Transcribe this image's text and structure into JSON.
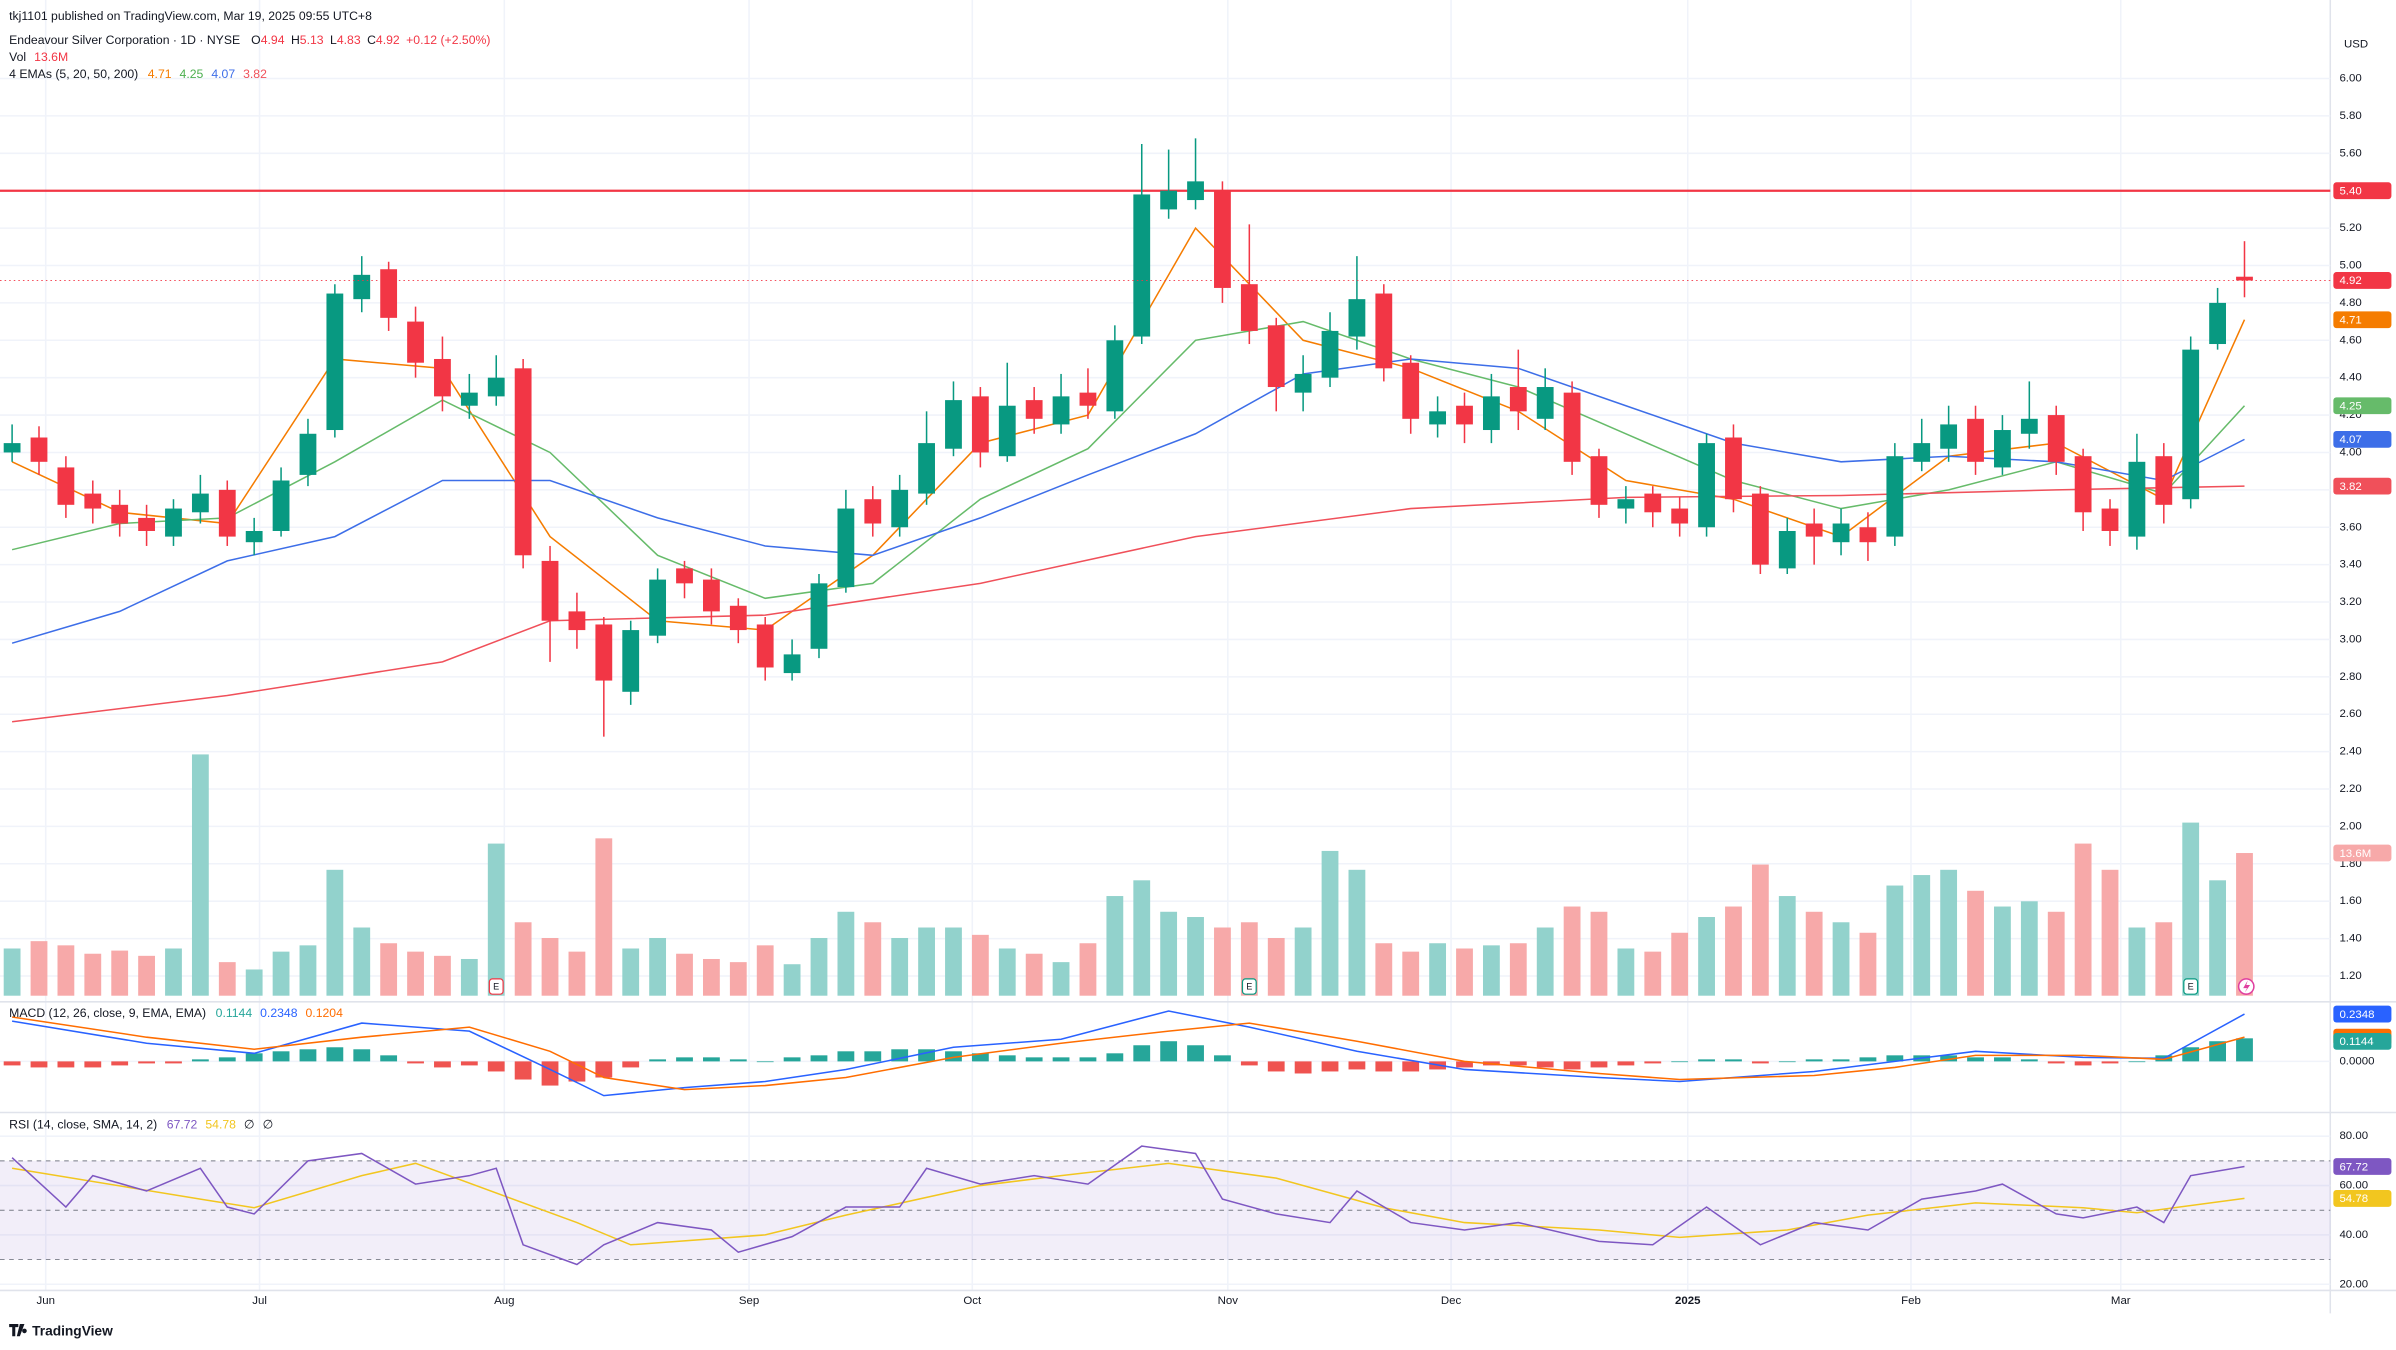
{
  "header": {
    "published": "tkj1101 published on TradingView.com, Mar 19, 2025 09:55 UTC+8"
  },
  "footer": {
    "brand": "TradingView"
  },
  "chart_data": [
    {
      "type": "candlestick",
      "title": "Endeavour Silver Corporation · 1D · NYSE",
      "legend_keys": [
        "O",
        "H",
        "L",
        "C"
      ],
      "change": "+0.12 (+2.50%)",
      "currency": "USD",
      "up_color": "#089981",
      "down_color": "#f23645",
      "grid": true,
      "xlim": [
        -0.45,
        86.19
      ],
      "ylim": [
        1.07,
        6.42
      ],
      "xticks": [
        {
          "value": 1.25,
          "label": "Jun"
        },
        {
          "value": 9.2,
          "label": "Jul"
        },
        {
          "value": 18.3,
          "label": "Aug"
        },
        {
          "value": 27.4,
          "label": "Sep"
        },
        {
          "value": 35.7,
          "label": "Oct"
        },
        {
          "value": 45.2,
          "label": "Nov"
        },
        {
          "value": 53.5,
          "label": "Dec"
        },
        {
          "value": 62.3,
          "label": "2025"
        },
        {
          "value": 70.6,
          "label": "Feb"
        },
        {
          "value": 78.4,
          "label": "Mar"
        }
      ],
      "yticks": [
        {
          "value": 1.2,
          "label": "1.20"
        },
        {
          "value": 1.4,
          "label": "1.40"
        },
        {
          "value": 1.6,
          "label": "1.60"
        },
        {
          "value": 1.8,
          "label": "1.80"
        },
        {
          "value": 2,
          "label": "2.00"
        },
        {
          "value": 2.2,
          "label": "2.20"
        },
        {
          "value": 2.4,
          "label": "2.40"
        },
        {
          "value": 2.6,
          "label": "2.60"
        },
        {
          "value": 2.8,
          "label": "2.80"
        },
        {
          "value": 3,
          "label": "3.00"
        },
        {
          "value": 3.2,
          "label": "3.20"
        },
        {
          "value": 3.4,
          "label": "3.40"
        },
        {
          "value": 3.6,
          "label": "3.60"
        },
        {
          "value": 3.8,
          "label": "3.80"
        },
        {
          "value": 4,
          "label": "4.00"
        },
        {
          "value": 4.2,
          "label": "4.20"
        },
        {
          "value": 4.4,
          "label": "4.40"
        },
        {
          "value": 4.6,
          "label": "4.60"
        },
        {
          "value": 4.8,
          "label": "4.80"
        },
        {
          "value": 5,
          "label": "5.00"
        },
        {
          "value": 5.2,
          "label": "5.20"
        },
        {
          "value": 5.4,
          "label": "5.40"
        },
        {
          "value": 5.6,
          "label": "5.60"
        },
        {
          "value": 5.8,
          "label": "5.80"
        },
        {
          "value": 6,
          "label": "6.00"
        }
      ],
      "open": [
        4.0,
        4.08,
        3.92,
        3.78,
        3.72,
        3.65,
        3.55,
        3.68,
        3.8,
        3.52,
        3.58,
        3.88,
        4.12,
        4.82,
        4.98,
        4.7,
        4.5,
        4.25,
        4.3,
        4.45,
        3.42,
        3.15,
        3.08,
        2.72,
        3.02,
        3.38,
        3.32,
        3.18,
        3.08,
        2.82,
        2.95,
        3.28,
        3.75,
        3.6,
        3.78,
        4.02,
        4.3,
        3.98,
        4.28,
        4.15,
        4.32,
        4.22,
        4.62,
        5.3,
        5.35,
        5.4,
        4.9,
        4.68,
        4.32,
        4.4,
        4.62,
        4.85,
        4.48,
        4.15,
        4.25,
        4.12,
        4.35,
        4.18,
        4.32,
        3.98,
        3.7,
        3.78,
        3.7,
        3.6,
        4.08,
        3.78,
        3.38,
        3.62,
        3.52,
        3.6,
        3.55,
        3.95,
        4.02,
        4.18,
        3.92,
        4.1,
        4.2,
        3.98,
        3.7,
        3.55,
        3.98,
        3.75,
        4.58,
        4.94
      ],
      "high": [
        4.15,
        4.14,
        3.98,
        3.85,
        3.8,
        3.72,
        3.75,
        3.88,
        3.85,
        3.65,
        3.92,
        4.18,
        4.9,
        5.05,
        5.02,
        4.78,
        4.62,
        4.42,
        4.52,
        4.5,
        3.5,
        3.25,
        3.12,
        3.1,
        3.38,
        3.42,
        3.38,
        3.22,
        3.12,
        3.0,
        3.35,
        3.8,
        3.82,
        3.88,
        4.22,
        4.38,
        4.35,
        4.48,
        4.35,
        4.42,
        4.45,
        4.68,
        5.65,
        5.62,
        5.68,
        5.45,
        5.22,
        4.72,
        4.52,
        4.75,
        5.05,
        4.9,
        4.52,
        4.3,
        4.32,
        4.42,
        4.55,
        4.45,
        4.38,
        4.02,
        3.82,
        3.82,
        3.76,
        4.1,
        4.15,
        3.82,
        3.65,
        3.7,
        3.7,
        3.68,
        4.05,
        4.18,
        4.25,
        4.25,
        4.2,
        4.38,
        4.25,
        4.02,
        3.75,
        4.1,
        4.05,
        4.62,
        4.88,
        5.13
      ],
      "low": [
        3.95,
        3.88,
        3.65,
        3.62,
        3.55,
        3.5,
        3.5,
        3.62,
        3.5,
        3.45,
        3.55,
        3.82,
        4.08,
        4.75,
        4.65,
        4.4,
        4.22,
        4.18,
        4.25,
        3.38,
        2.88,
        2.95,
        2.48,
        2.65,
        2.98,
        3.22,
        3.08,
        2.98,
        2.78,
        2.78,
        2.9,
        3.25,
        3.55,
        3.55,
        3.72,
        3.98,
        3.92,
        3.95,
        4.1,
        4.1,
        4.18,
        4.18,
        4.58,
        5.25,
        5.3,
        4.8,
        4.58,
        4.22,
        4.22,
        4.35,
        4.55,
        4.38,
        4.1,
        4.08,
        4.05,
        4.05,
        4.12,
        4.12,
        3.88,
        3.65,
        3.62,
        3.6,
        3.55,
        3.55,
        3.68,
        3.35,
        3.35,
        3.4,
        3.45,
        3.42,
        3.5,
        3.9,
        3.95,
        3.88,
        3.88,
        4.02,
        3.88,
        3.58,
        3.5,
        3.48,
        3.62,
        3.7,
        4.55,
        4.83
      ],
      "close": [
        4.05,
        3.95,
        3.72,
        3.7,
        3.62,
        3.58,
        3.7,
        3.78,
        3.55,
        3.58,
        3.85,
        4.1,
        4.85,
        4.95,
        4.72,
        4.48,
        4.3,
        4.32,
        4.4,
        3.45,
        3.1,
        3.05,
        2.78,
        3.05,
        3.32,
        3.3,
        3.15,
        3.05,
        2.85,
        2.92,
        3.3,
        3.7,
        3.62,
        3.8,
        4.05,
        4.28,
        4.0,
        4.25,
        4.18,
        4.3,
        4.25,
        4.6,
        5.38,
        5.4,
        5.45,
        4.88,
        4.65,
        4.35,
        4.42,
        4.65,
        4.82,
        4.45,
        4.18,
        4.22,
        4.15,
        4.3,
        4.22,
        4.35,
        3.95,
        3.72,
        3.75,
        3.68,
        3.62,
        4.05,
        3.75,
        3.4,
        3.58,
        3.55,
        3.62,
        3.52,
        3.98,
        4.05,
        4.15,
        3.95,
        4.12,
        4.18,
        3.95,
        3.68,
        3.58,
        3.95,
        3.72,
        4.55,
        4.8,
        4.92
      ],
      "hline": {
        "value": 5.4,
        "label": "5.40",
        "color": "#f23645"
      },
      "events": [
        {
          "x": 18,
          "label": "E"
        },
        {
          "x": 46,
          "label": "E"
        },
        {
          "x": 81,
          "label": "E"
        }
      ],
      "volume": {
        "label": "Vol",
        "last_label": "13.6M",
        "up_color": "#92d2cc",
        "down_color": "#f7a9a9",
        "values": [
          4.5,
          5.2,
          4.8,
          4.0,
          4.3,
          3.8,
          4.5,
          23.0,
          3.2,
          2.5,
          4.2,
          4.8,
          12.0,
          6.5,
          5.0,
          4.2,
          3.8,
          3.5,
          14.5,
          7.0,
          5.5,
          4.2,
          15.0,
          4.5,
          5.5,
          4.0,
          3.5,
          3.2,
          4.8,
          3.0,
          5.5,
          8.0,
          7.0,
          5.5,
          6.5,
          6.5,
          5.8,
          4.5,
          4.0,
          3.2,
          5.0,
          9.5,
          11.0,
          8.0,
          7.5,
          6.5,
          7.0,
          5.5,
          6.5,
          13.8,
          12.0,
          5.0,
          4.2,
          5.0,
          4.5,
          4.8,
          5.0,
          6.5,
          8.5,
          8.0,
          4.5,
          4.2,
          6.0,
          7.5,
          8.5,
          12.5,
          9.5,
          8.0,
          7.0,
          6.0,
          10.5,
          11.5,
          12.0,
          10.0,
          8.5,
          9.0,
          8.0,
          14.5,
          12.0,
          6.5,
          7.0,
          16.5,
          11.0,
          13.6
        ]
      },
      "overlay_title": "4 EMAs (5, 20, 50, 200)",
      "series": [
        {
          "color": "#f57c00",
          "x": [
            0,
            4,
            8,
            12,
            16,
            20,
            24,
            28,
            32,
            36,
            40,
            44,
            48,
            52,
            56,
            60,
            64,
            68,
            72,
            76,
            80,
            83
          ],
          "values": [
            3.95,
            3.68,
            3.62,
            4.5,
            4.45,
            3.55,
            3.1,
            3.05,
            3.45,
            4.05,
            4.2,
            5.2,
            4.6,
            4.45,
            4.22,
            3.85,
            3.75,
            3.55,
            3.98,
            4.05,
            3.75,
            4.71
          ]
        },
        {
          "color": "#66bb6a",
          "x": [
            0,
            4,
            8,
            12,
            16,
            20,
            24,
            28,
            32,
            36,
            40,
            44,
            48,
            52,
            56,
            60,
            64,
            68,
            72,
            76,
            80,
            83
          ],
          "values": [
            3.48,
            3.62,
            3.65,
            3.95,
            4.28,
            4.0,
            3.45,
            3.22,
            3.3,
            3.75,
            4.02,
            4.6,
            4.7,
            4.5,
            4.35,
            4.1,
            3.85,
            3.7,
            3.8,
            3.95,
            3.78,
            4.25
          ]
        },
        {
          "color": "#3d6ee8",
          "x": [
            0,
            4,
            8,
            12,
            16,
            20,
            24,
            28,
            32,
            36,
            40,
            44,
            48,
            52,
            56,
            60,
            64,
            68,
            72,
            76,
            80,
            83
          ],
          "values": [
            2.98,
            3.15,
            3.42,
            3.55,
            3.85,
            3.85,
            3.65,
            3.5,
            3.45,
            3.65,
            3.88,
            4.1,
            4.42,
            4.5,
            4.45,
            4.25,
            4.05,
            3.95,
            3.98,
            3.95,
            3.85,
            4.07
          ]
        },
        {
          "color": "#f0505a",
          "x": [
            0,
            8,
            16,
            20,
            28,
            36,
            44,
            52,
            60,
            68,
            76,
            83
          ],
          "values": [
            2.56,
            2.7,
            2.88,
            3.1,
            3.13,
            3.3,
            3.55,
            3.7,
            3.76,
            3.77,
            3.8,
            3.82
          ]
        }
      ]
    },
    {
      "type": "macd",
      "title": "MACD (12, 26, close, 9, EMA, EMA)",
      "grid": true,
      "ylim": [
        -0.25,
        0.288
      ],
      "yticks": [
        {
          "value": 0,
          "label": "0.0000"
        }
      ],
      "histogram": {
        "up_color": "#26a69a",
        "down_color": "#ef5350",
        "values": [
          -0.02,
          -0.03,
          -0.03,
          -0.03,
          -0.02,
          -0.01,
          -0.01,
          0.01,
          0.02,
          0.04,
          0.05,
          0.06,
          0.07,
          0.06,
          0.03,
          -0.01,
          -0.03,
          -0.02,
          -0.05,
          -0.09,
          -0.12,
          -0.1,
          -0.08,
          -0.03,
          0.01,
          0.02,
          0.02,
          0.01,
          0.0,
          0.02,
          0.03,
          0.05,
          0.05,
          0.06,
          0.06,
          0.05,
          0.04,
          0.03,
          0.02,
          0.02,
          0.02,
          0.04,
          0.08,
          0.1,
          0.08,
          0.03,
          -0.02,
          -0.05,
          -0.06,
          -0.05,
          -0.04,
          -0.05,
          -0.05,
          -0.04,
          -0.03,
          -0.02,
          -0.02,
          -0.03,
          -0.04,
          -0.03,
          -0.02,
          -0.01,
          0.0,
          0.01,
          0.01,
          -0.01,
          0.0,
          0.01,
          0.01,
          0.02,
          0.03,
          0.03,
          0.03,
          0.02,
          0.02,
          0.01,
          -0.01,
          -0.02,
          -0.01,
          0.0,
          0.03,
          0.07,
          0.1,
          0.1144
        ]
      },
      "series": [
        {
          "color": "#2962ff",
          "x": [
            0,
            5,
            9,
            13,
            17,
            20,
            22,
            25,
            28,
            31,
            35,
            39,
            43,
            46,
            50,
            54,
            59,
            62,
            67,
            70,
            73,
            77,
            80,
            83
          ],
          "values": [
            0.2,
            0.09,
            0.04,
            0.19,
            0.15,
            -0.04,
            -0.17,
            -0.13,
            -0.1,
            -0.04,
            0.07,
            0.11,
            0.25,
            0.17,
            0.05,
            -0.04,
            -0.08,
            -0.1,
            -0.05,
            0.0,
            0.05,
            0.02,
            0.015,
            0.2348
          ]
        },
        {
          "color": "#ff6d00",
          "x": [
            0,
            5,
            9,
            13,
            17,
            20,
            22,
            25,
            28,
            31,
            35,
            39,
            43,
            46,
            50,
            54,
            59,
            62,
            67,
            70,
            73,
            77,
            80,
            83
          ],
          "values": [
            0.22,
            0.12,
            0.06,
            0.12,
            0.17,
            0.05,
            -0.08,
            -0.14,
            -0.12,
            -0.08,
            0.02,
            0.09,
            0.15,
            0.19,
            0.1,
            0.0,
            -0.06,
            -0.09,
            -0.07,
            -0.03,
            0.03,
            0.03,
            0.01,
            0.1204
          ]
        }
      ]
    },
    {
      "type": "rsi",
      "title": "RSI (14, close, SMA, 14, 2)",
      "na_labels": [
        "∅",
        "∅"
      ],
      "grid": true,
      "ylim": [
        17.5,
        89.9
      ],
      "yticks": [
        {
          "value": 20,
          "label": "20.00"
        },
        {
          "value": 40,
          "label": "40.00"
        },
        {
          "value": 60,
          "label": "60.00"
        },
        {
          "value": 80,
          "label": "80.00"
        }
      ],
      "upper_band": 70,
      "middle_band": 50,
      "lower_band": 30,
      "band_color": "#7e57c2",
      "series": [
        {
          "color": "#7e57c2",
          "x": [
            0,
            2,
            3,
            5,
            7,
            8,
            9,
            11,
            13,
            15,
            17,
            18,
            19,
            21,
            22,
            24,
            26,
            27,
            29,
            31,
            33,
            34,
            36,
            38,
            40,
            42,
            44,
            45,
            47,
            49,
            50,
            52,
            54,
            56,
            59,
            61,
            63,
            65,
            67,
            69,
            71,
            73,
            74,
            76,
            77,
            79,
            80,
            81,
            83
          ],
          "values": [
            71.3,
            51.3,
            64,
            57.8,
            67,
            51.3,
            48.5,
            70,
            73,
            60.6,
            64,
            67,
            36,
            28,
            36,
            45,
            42,
            33,
            39.3,
            51.3,
            51.3,
            67,
            60.6,
            64,
            60.6,
            76,
            73,
            54.5,
            48.5,
            45,
            57.8,
            45,
            42,
            45,
            37.4,
            36,
            51.3,
            36,
            45,
            42,
            54.5,
            57.8,
            60.6,
            48.5,
            46.9,
            51.3,
            45,
            64,
            67.72
          ]
        },
        {
          "color": "#f2c61f",
          "x": [
            0,
            7,
            9,
            13,
            15,
            21,
            23,
            28,
            31,
            36,
            39,
            43,
            47,
            51,
            54,
            59,
            62,
            66,
            69,
            73,
            77,
            79,
            83
          ],
          "values": [
            67,
            54.5,
            51,
            64,
            69,
            45,
            36,
            40,
            48,
            60,
            64,
            69,
            63,
            51,
            45,
            42,
            39,
            42,
            48,
            53,
            51,
            49,
            54.78
          ]
        }
      ]
    }
  ]
}
